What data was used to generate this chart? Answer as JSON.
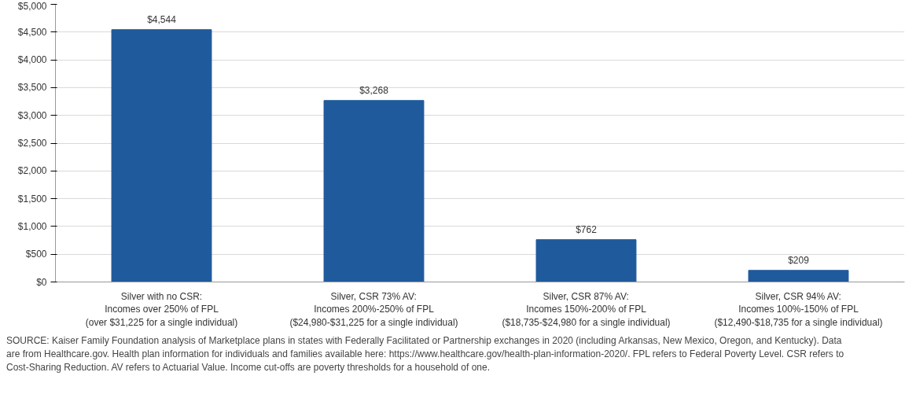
{
  "chart_data": {
    "type": "bar",
    "categories": [
      "Silver with no CSR:\nIncomes over 250% of FPL\n(over $31,225 for a single individual)",
      "Silver, CSR 73% AV:\nIncomes 200%-250% of FPL\n($24,980-$31,225 for a single individual)",
      "Silver, CSR 87% AV:\nIncomes 150%-200% of FPL\n($18,735-$24,980 for a single individual)",
      "Silver, CSR 94% AV:\nIncomes 100%-150% of FPL\n($12,490-$18,735 for a single individual)"
    ],
    "values": [
      4544,
      3268,
      762,
      209
    ],
    "value_labels": [
      "$4,544",
      "$3,268",
      "$762",
      "$209"
    ],
    "color": "#1f5a9c",
    "ylim": [
      0,
      5000
    ],
    "yticks": [
      {
        "value": 0,
        "label": "$0"
      },
      {
        "value": 500,
        "label": "$500"
      },
      {
        "value": 1000,
        "label": "$1,000"
      },
      {
        "value": 1500,
        "label": "$1,500"
      },
      {
        "value": 2000,
        "label": "$2,000"
      },
      {
        "value": 2500,
        "label": "$2,500"
      },
      {
        "value": 3000,
        "label": "$3,000"
      },
      {
        "value": 3500,
        "label": "$3,500"
      },
      {
        "value": 4000,
        "label": "$4,000"
      },
      {
        "value": 4500,
        "label": "$4,500"
      },
      {
        "value": 5000,
        "label": "$5,000"
      }
    ],
    "grid": "y",
    "annotations": [
      "SOURCE: Kaiser Family Foundation analysis of Marketplace plans in states with Federally Facilitated or Partnership exchanges in 2020 (including Arkansas, New Mexico, Oregon, and Kentucky). Data are from Healthcare.gov. Health plan information for individuals and families available here: https://www.healthcare.gov/health-plan-information-2020/. FPL refers to Federal Poverty Level. CSR refers to Cost-Sharing Reduction. AV refers to Actuarial Value. Income cut-offs are poverty thresholds for a household of one."
    ]
  }
}
